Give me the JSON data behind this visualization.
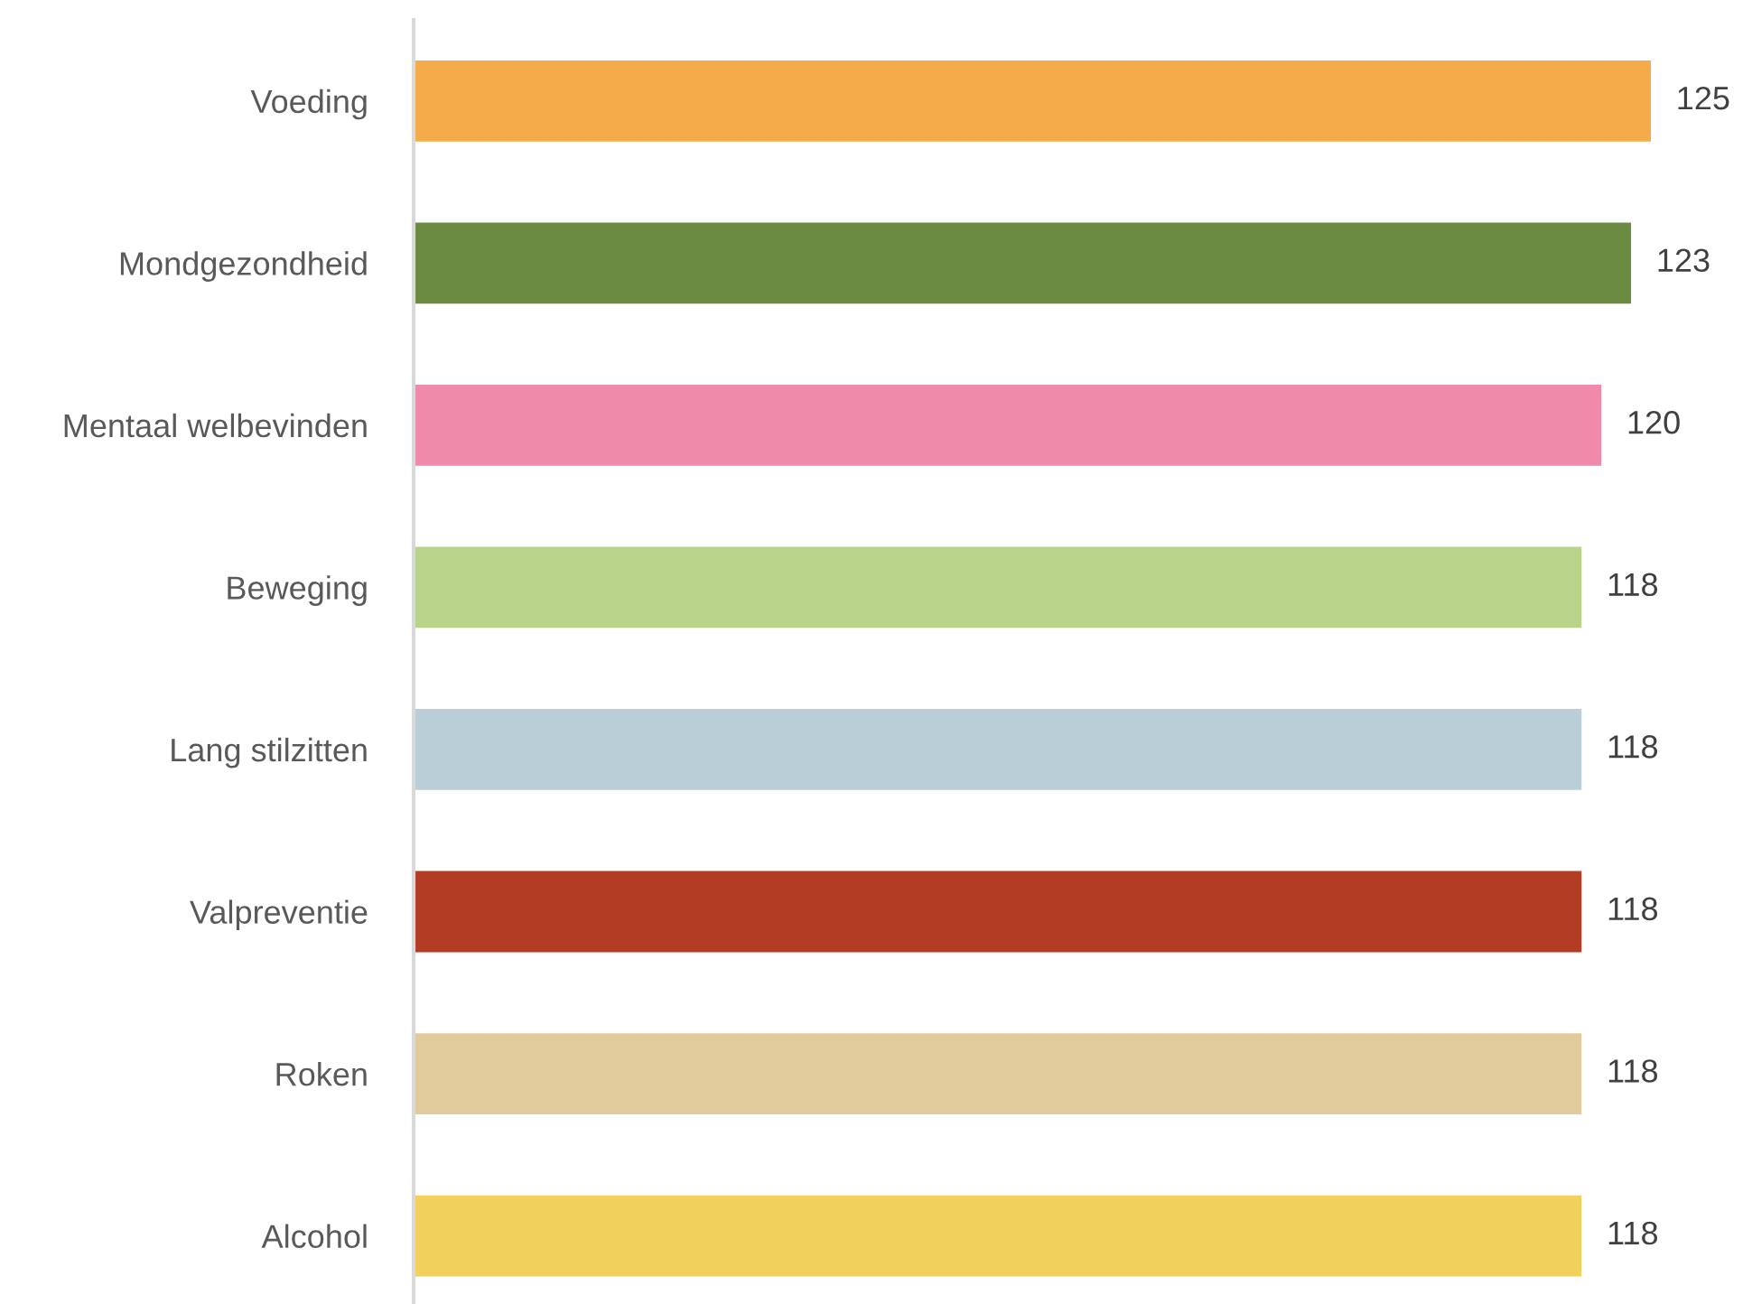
{
  "chart_data": {
    "type": "bar",
    "orientation": "horizontal",
    "categories": [
      "Voeding",
      "Mondgezondheid",
      "Mentaal welbevinden",
      "Beweging",
      "Lang stilzitten",
      "Valpreventie",
      "Roken",
      "Alcohol"
    ],
    "values": [
      125,
      123,
      120,
      118,
      118,
      118,
      118,
      118
    ],
    "colors": [
      "#f5ab4a",
      "#6b8a42",
      "#ef8aaa",
      "#b8d38a",
      "#b9ced6",
      "#b33c25",
      "#e1cb9d",
      "#f2d05c"
    ],
    "data_labels": true,
    "grid": false,
    "legend": false
  }
}
